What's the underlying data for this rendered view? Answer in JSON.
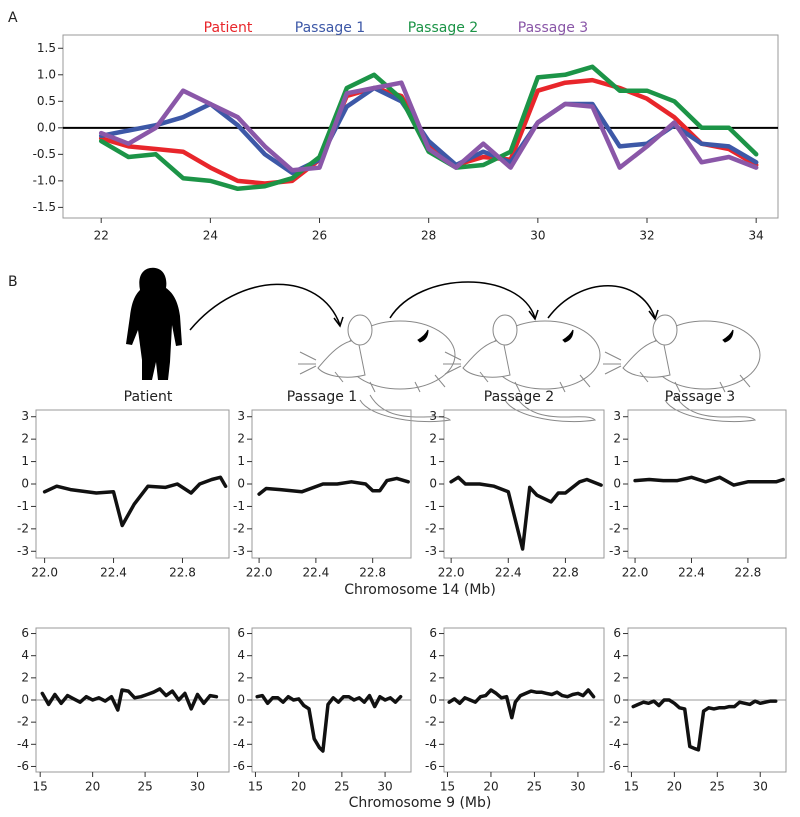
{
  "panel_labels": [
    "A",
    "B"
  ],
  "illustration_labels": [
    "Patient",
    "Passage 1",
    "Passage 2",
    "Passage 3"
  ],
  "row_x_labels": [
    "Chromosome 14 (Mb)",
    "Chromosome 9 (Mb)"
  ],
  "chart_data": [
    {
      "type": "line",
      "x": [
        22,
        22.5,
        23,
        23.5,
        24,
        24.5,
        25,
        25.5,
        26,
        26.5,
        27,
        27.5,
        28,
        28.5,
        29,
        29.5,
        30,
        30.5,
        31,
        31.5,
        32,
        32.5,
        33,
        33.5,
        34
      ],
      "series": [
        {
          "name": "Patient",
          "color": "#e8262b",
          "values": [
            -0.2,
            -0.35,
            -0.4,
            -0.45,
            -0.75,
            -1.0,
            -1.05,
            -1.0,
            -0.6,
            0.6,
            0.75,
            0.6,
            -0.3,
            -0.7,
            -0.55,
            -0.6,
            0.7,
            0.85,
            0.9,
            0.75,
            0.55,
            0.2,
            -0.3,
            -0.4,
            -0.7
          ]
        },
        {
          "name": "Passage 1",
          "color": "#3d58a7",
          "values": [
            -0.15,
            -0.05,
            0.05,
            0.2,
            0.45,
            0.05,
            -0.5,
            -0.85,
            -0.6,
            0.4,
            0.75,
            0.5,
            -0.25,
            -0.7,
            -0.45,
            -0.65,
            0.1,
            0.45,
            0.45,
            -0.35,
            -0.3,
            0.05,
            -0.3,
            -0.35,
            -0.65
          ]
        },
        {
          "name": "Passage 2",
          "color": "#1c9447",
          "values": [
            -0.25,
            -0.55,
            -0.5,
            -0.95,
            -1.0,
            -1.15,
            -1.1,
            -0.95,
            -0.55,
            0.75,
            1.0,
            0.55,
            -0.45,
            -0.75,
            -0.7,
            -0.45,
            0.95,
            1.0,
            1.15,
            0.7,
            0.7,
            0.5,
            0.0,
            0.0,
            -0.5
          ]
        },
        {
          "name": "Passage 3",
          "color": "#8a57a8",
          "values": [
            -0.1,
            -0.3,
            0.0,
            0.7,
            0.45,
            0.2,
            -0.35,
            -0.8,
            -0.75,
            0.65,
            0.75,
            0.85,
            -0.4,
            -0.75,
            -0.3,
            -0.75,
            0.1,
            0.45,
            0.4,
            -0.75,
            -0.35,
            0.1,
            -0.65,
            -0.55,
            -0.75
          ]
        }
      ],
      "xlim": [
        21.3,
        34.4
      ],
      "xticks": [
        22,
        24,
        26,
        28,
        30,
        32,
        34
      ],
      "ylim": [
        -1.7,
        1.75
      ],
      "yticks": [
        -1.5,
        {
          "value": -1,
          "label": "-1.0"
        },
        -0.5,
        {
          "value": 0,
          "label": "0.0"
        },
        0.5,
        {
          "value": 1,
          "label": "1.0"
        },
        1.5
      ],
      "zero_line": true
    },
    {
      "type": "line",
      "color": "#111111",
      "x": [
        22.0,
        22.07,
        22.15,
        22.3,
        22.4,
        22.45,
        22.52,
        22.6,
        22.7,
        22.77,
        22.85,
        22.9,
        22.97,
        23.02,
        23.05
      ],
      "values": [
        -0.35,
        -0.1,
        -0.25,
        -0.4,
        -0.35,
        -1.85,
        -0.9,
        -0.1,
        -0.15,
        0.0,
        -0.4,
        0.0,
        0.2,
        0.3,
        -0.1
      ],
      "xlim": [
        21.95,
        23.07
      ],
      "xticks": [
        {
          "value": 22,
          "label": "22.0"
        },
        22.4,
        22.8
      ],
      "ylim": [
        -3.3,
        3.3
      ],
      "yticks": [
        -3,
        -2,
        -1,
        0,
        1,
        2,
        3
      ]
    },
    {
      "type": "line",
      "color": "#111111",
      "x": [
        22.0,
        22.05,
        22.15,
        22.3,
        22.45,
        22.55,
        22.65,
        22.75,
        22.8,
        22.85,
        22.9,
        22.97,
        23.05
      ],
      "values": [
        -0.45,
        -0.2,
        -0.25,
        -0.35,
        0.0,
        0.0,
        0.1,
        0.0,
        -0.3,
        -0.3,
        0.15,
        0.25,
        0.1
      ],
      "xlim": [
        21.95,
        23.07
      ],
      "xticks": [
        {
          "value": 22,
          "label": "22.0"
        },
        22.4,
        22.8
      ],
      "ylim": [
        -3.3,
        3.3
      ],
      "yticks": [
        -3,
        -2,
        -1,
        0,
        1,
        2,
        3
      ]
    },
    {
      "type": "line",
      "color": "#111111",
      "x": [
        22.0,
        22.05,
        22.1,
        22.2,
        22.3,
        22.4,
        22.5,
        22.55,
        22.6,
        22.7,
        22.75,
        22.8,
        22.9,
        22.95,
        23.05
      ],
      "values": [
        0.1,
        0.3,
        0.0,
        0.0,
        -0.1,
        -0.35,
        -2.9,
        -0.15,
        -0.5,
        -0.8,
        -0.4,
        -0.4,
        0.1,
        0.2,
        -0.05
      ],
      "xlim": [
        21.95,
        23.07
      ],
      "xticks": [
        {
          "value": 22,
          "label": "22.0"
        },
        22.4,
        22.8
      ],
      "ylim": [
        -3.3,
        3.3
      ],
      "yticks": [
        -3,
        -2,
        -1,
        0,
        1,
        2,
        3
      ]
    },
    {
      "type": "line",
      "color": "#111111",
      "x": [
        22.0,
        22.1,
        22.2,
        22.3,
        22.4,
        22.5,
        22.6,
        22.7,
        22.8,
        22.9,
        23.0,
        23.05
      ],
      "values": [
        0.15,
        0.2,
        0.15,
        0.15,
        0.3,
        0.1,
        0.3,
        -0.05,
        0.1,
        0.1,
        0.1,
        0.2
      ],
      "xlim": [
        21.95,
        23.07
      ],
      "xticks": [
        {
          "value": 22,
          "label": "22.0"
        },
        22.4,
        22.8
      ],
      "ylim": [
        -3.3,
        3.3
      ],
      "yticks": [
        -3,
        -2,
        -1,
        0,
        1,
        2,
        3
      ]
    },
    {
      "type": "line",
      "color": "#111111",
      "x": [
        15.2,
        15.8,
        16.4,
        17,
        17.6,
        18.2,
        18.8,
        19.4,
        20,
        20.6,
        21.2,
        21.8,
        22.4,
        22.8,
        23.4,
        24,
        24.6,
        25.2,
        25.8,
        26.4,
        27,
        27.6,
        28.2,
        28.8,
        29.4,
        30,
        30.6,
        31.2,
        31.8
      ],
      "values": [
        0.6,
        -0.4,
        0.5,
        -0.3,
        0.4,
        0.1,
        -0.2,
        0.3,
        0.0,
        0.2,
        -0.1,
        0.3,
        -0.9,
        0.9,
        0.8,
        0.2,
        0.3,
        0.5,
        0.7,
        1.0,
        0.4,
        0.8,
        0.0,
        0.6,
        -0.8,
        0.5,
        -0.3,
        0.4,
        0.3
      ],
      "xlim": [
        14.6,
        33
      ],
      "xticks": [
        15,
        20,
        25,
        30
      ],
      "ylim": [
        -6.5,
        6.5
      ],
      "yticks": [
        -6,
        -4,
        -2,
        0,
        2,
        4,
        6
      ],
      "zero_line": true
    },
    {
      "type": "line",
      "color": "#111111",
      "x": [
        15.2,
        15.8,
        16.4,
        17,
        17.6,
        18.2,
        18.8,
        19.4,
        20,
        20.6,
        21.2,
        21.8,
        22.4,
        22.8,
        23.4,
        24,
        24.6,
        25.2,
        25.8,
        26.4,
        27,
        27.6,
        28.2,
        28.8,
        29.4,
        30,
        30.6,
        31.2,
        31.8
      ],
      "values": [
        0.3,
        0.4,
        -0.3,
        0.2,
        0.2,
        -0.2,
        0.3,
        0.0,
        0.1,
        -0.5,
        -0.8,
        -3.5,
        -4.3,
        -4.6,
        -0.4,
        0.2,
        -0.2,
        0.3,
        0.3,
        0.0,
        0.2,
        -0.2,
        0.4,
        -0.6,
        0.3,
        0.0,
        0.2,
        -0.2,
        0.3
      ],
      "xlim": [
        14.6,
        33
      ],
      "xticks": [
        15,
        20,
        25,
        30
      ],
      "ylim": [
        -6.5,
        6.5
      ],
      "yticks": [
        -6,
        -4,
        -2,
        0,
        2,
        4,
        6
      ],
      "zero_line": true
    },
    {
      "type": "line",
      "color": "#111111",
      "x": [
        15.2,
        15.8,
        16.4,
        17,
        17.6,
        18.2,
        18.8,
        19.4,
        20,
        20.6,
        21.2,
        21.8,
        22.4,
        22.8,
        23.4,
        24,
        24.6,
        25.2,
        25.8,
        26.4,
        27,
        27.6,
        28.2,
        28.8,
        29.4,
        30,
        30.6,
        31.2,
        31.8
      ],
      "values": [
        -0.2,
        0.1,
        -0.3,
        0.2,
        0.0,
        -0.2,
        0.3,
        0.4,
        0.9,
        0.6,
        0.2,
        0.3,
        -1.6,
        -0.2,
        0.4,
        0.6,
        0.8,
        0.7,
        0.7,
        0.6,
        0.5,
        0.7,
        0.4,
        0.3,
        0.5,
        0.6,
        0.4,
        0.9,
        0.3
      ],
      "xlim": [
        14.6,
        33
      ],
      "xticks": [
        15,
        20,
        25,
        30
      ],
      "ylim": [
        -6.5,
        6.5
      ],
      "yticks": [
        -6,
        -4,
        -2,
        0,
        2,
        4,
        6
      ],
      "zero_line": true
    },
    {
      "type": "line",
      "color": "#111111",
      "x": [
        15.2,
        15.8,
        16.4,
        17,
        17.6,
        18.2,
        18.8,
        19.4,
        20,
        20.6,
        21.2,
        21.8,
        22.4,
        22.8,
        23.4,
        24,
        24.6,
        25.2,
        25.8,
        26.4,
        27,
        27.6,
        28.2,
        28.8,
        29.4,
        30,
        30.6,
        31.2,
        31.8
      ],
      "values": [
        -0.6,
        -0.4,
        -0.2,
        -0.3,
        -0.1,
        -0.5,
        0.0,
        0.0,
        -0.3,
        -0.7,
        -0.8,
        -4.2,
        -4.4,
        -4.5,
        -1.0,
        -0.7,
        -0.8,
        -0.7,
        -0.7,
        -0.6,
        -0.6,
        -0.2,
        -0.3,
        -0.4,
        -0.1,
        -0.3,
        -0.2,
        -0.1,
        -0.1
      ],
      "xlim": [
        14.6,
        33
      ],
      "xticks": [
        15,
        20,
        25,
        30
      ],
      "ylim": [
        -6.5,
        6.5
      ],
      "yticks": [
        -6,
        -4,
        -2,
        0,
        2,
        4,
        6
      ],
      "zero_line": true
    }
  ]
}
